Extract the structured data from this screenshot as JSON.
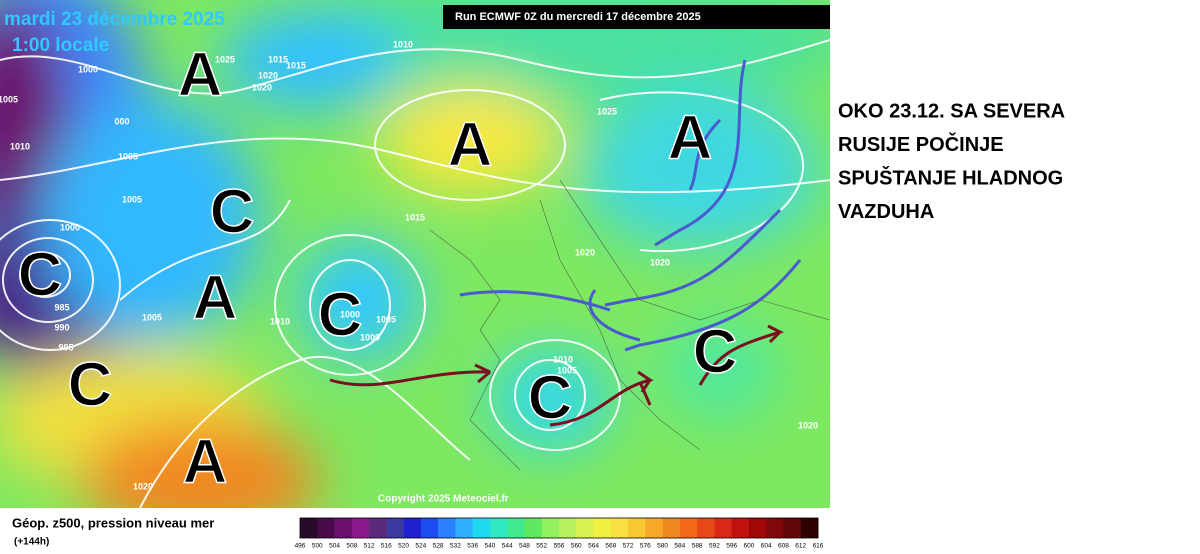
{
  "header": {
    "date": "mardi 23 décembre 2025",
    "time": "1:00 locale",
    "run": "Run ECMWF 0Z du mercredi 17 décembre 2025",
    "copyright": "Copyright 2025 Meteociel.fr"
  },
  "map": {
    "isobar_labels": [
      "1025",
      "1015",
      "1015",
      "1020",
      "1020",
      "1010",
      "1000",
      "1005",
      "000",
      "1010",
      "1005",
      "1005",
      "1000",
      "985",
      "990",
      "995",
      "1005",
      "1010",
      "1000",
      "1005",
      "1000",
      "1015",
      "1025",
      "1020",
      "1020",
      "1010",
      "1005",
      "1020",
      "1020"
    ],
    "pressure_centers": [
      "A",
      "A",
      "A",
      "C",
      "A",
      "C",
      "C",
      "A",
      "C",
      "C",
      "C"
    ]
  },
  "legend": {
    "title": "Géop. z500, pression niveau mer",
    "subtitle": "(+144h)",
    "colors": [
      "#2a0a2a",
      "#4a0a4a",
      "#6a106a",
      "#8a1a8a",
      "#5a2a7a",
      "#3a3aa0",
      "#2020d0",
      "#1c4cf0",
      "#2a80ff",
      "#30b0ff",
      "#20d8f0",
      "#30e8c0",
      "#40e890",
      "#60e860",
      "#90f060",
      "#b8f060",
      "#d8f050",
      "#f0f040",
      "#f8e040",
      "#f8c830",
      "#f8a828",
      "#f08820",
      "#f06818",
      "#e84818",
      "#d82818",
      "#c01010",
      "#a00808",
      "#800808",
      "#600808",
      "#300000"
    ],
    "ticks": [
      496,
      500,
      504,
      508,
      512,
      516,
      520,
      524,
      528,
      532,
      536,
      540,
      544,
      548,
      552,
      556,
      560,
      564,
      568,
      572,
      576,
      580,
      584,
      588,
      592,
      596,
      600,
      604,
      608,
      612,
      616
    ]
  },
  "annotation": {
    "lines": [
      "OKO 23.12. SA SEVERA",
      "RUSIJE POČINJE",
      "SPUŠTANJE HLADNOG",
      "VAZDUHA"
    ]
  }
}
